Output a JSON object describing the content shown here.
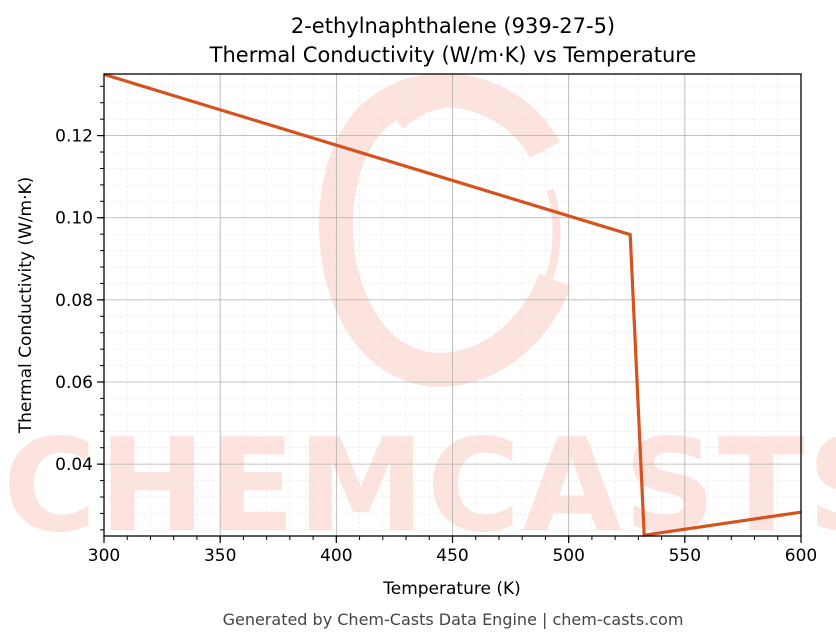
{
  "chart_data": {
    "type": "line",
    "title": "2-ethylnaphthalene (939-27-5)",
    "subtitle": "Thermal Conductivity (W/m·K) vs Temperature",
    "xlabel": "Temperature (K)",
    "ylabel": "Thermal Conductivity (W/m·K)",
    "xlim": [
      300,
      600
    ],
    "ylim": [
      0.0225,
      0.135
    ],
    "xticks": [
      "300",
      "350",
      "400",
      "450",
      "500",
      "550",
      "600"
    ],
    "yticks": [
      "0.04",
      "0.06",
      "0.08",
      "0.10",
      "0.12"
    ],
    "grid": true,
    "series": [
      {
        "color": "#d4531f",
        "x": [
          300,
          526.5,
          532.5,
          600
        ],
        "y": [
          0.1349,
          0.0959,
          0.0227,
          0.0283
        ]
      }
    ]
  },
  "watermark": {
    "text": "CHEMCASTS",
    "color": "#fde3dd"
  },
  "footer": "Generated by Chem-Casts Data Engine | chem-casts.com"
}
